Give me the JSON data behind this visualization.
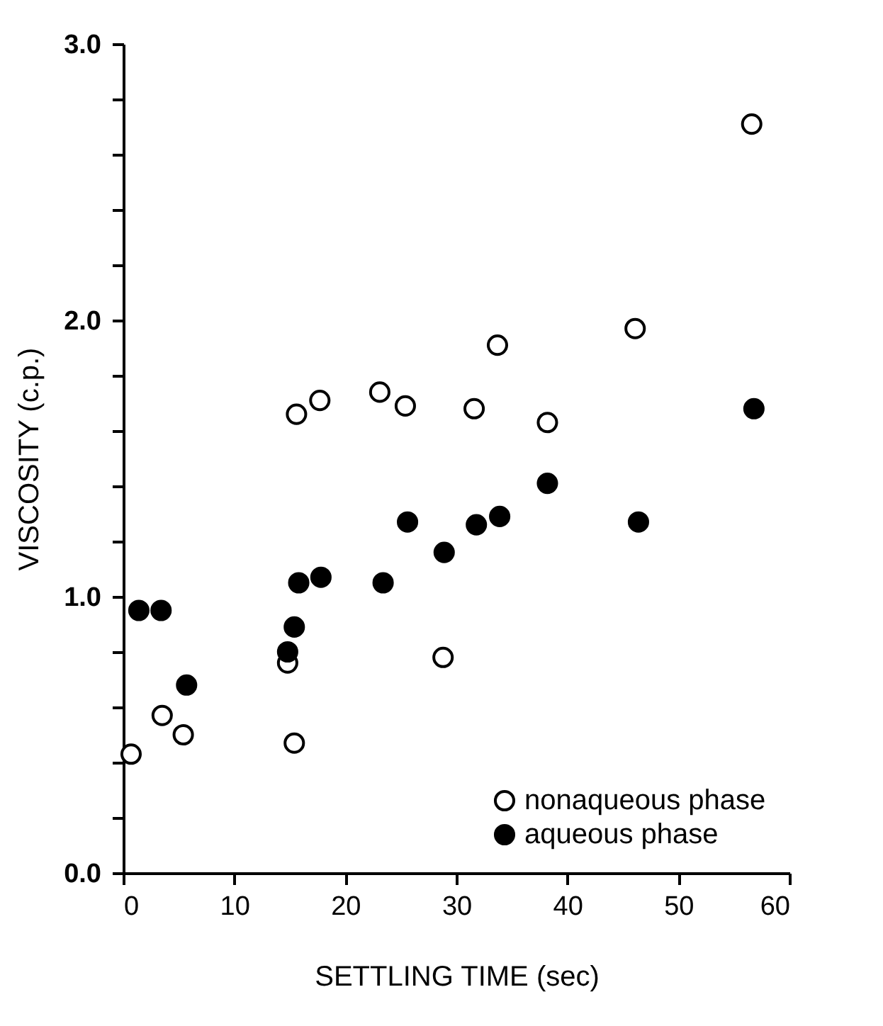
{
  "chart_data": {
    "type": "scatter",
    "xlabel": "SETTLING TIME (sec)",
    "ylabel": "VISCOSITY (c.p.)",
    "xlim": [
      0,
      60
    ],
    "xticks": [
      0,
      10,
      20,
      30,
      40,
      50,
      60
    ],
    "ylim": [
      0,
      3
    ],
    "yticks": [
      {
        "value": 0,
        "label": "0.0"
      },
      {
        "value": 0.2,
        "label": null
      },
      {
        "value": 0.4,
        "label": null
      },
      {
        "value": 0.6,
        "label": null
      },
      {
        "value": 0.8,
        "label": null
      },
      {
        "value": 1,
        "label": "1.0"
      },
      {
        "value": 1.2,
        "label": null
      },
      {
        "value": 1.4,
        "label": null
      },
      {
        "value": 1.6,
        "label": null
      },
      {
        "value": 1.8,
        "label": null
      },
      {
        "value": 2,
        "label": "2.0"
      },
      {
        "value": 2.2,
        "label": null
      },
      {
        "value": 2.4,
        "label": null
      },
      {
        "value": 2.6,
        "label": null
      },
      {
        "value": 2.8,
        "label": null
      },
      {
        "value": 3,
        "label": "3.0"
      }
    ],
    "marker": "circle",
    "grid": false,
    "legend": "bottom right",
    "series": [
      {
        "name": "nonaqueous phase",
        "color": "#000000",
        "x": [
          0.7,
          3.5,
          5.4,
          14.8,
          15.4,
          28.8,
          15.6,
          17.7,
          23.1,
          25.4,
          31.6,
          33.7,
          38.2,
          46.1,
          56.6
        ],
        "values": [
          0.43,
          0.57,
          0.5,
          0.76,
          0.47,
          0.78,
          1.66,
          1.71,
          1.74,
          1.69,
          1.68,
          1.91,
          1.63,
          1.97,
          2.71
        ]
      },
      {
        "name": "aqueous phase",
        "color": "#000000",
        "x": [
          1.4,
          3.4,
          5.7,
          14.8,
          15.4,
          15.8,
          17.8,
          23.4,
          25.6,
          28.9,
          31.8,
          33.9,
          38.2,
          46.4,
          56.8
        ],
        "values": [
          0.95,
          0.95,
          0.68,
          0.8,
          0.89,
          1.05,
          1.07,
          1.05,
          1.27,
          1.16,
          1.26,
          1.29,
          1.41,
          1.27,
          1.68
        ]
      }
    ]
  }
}
